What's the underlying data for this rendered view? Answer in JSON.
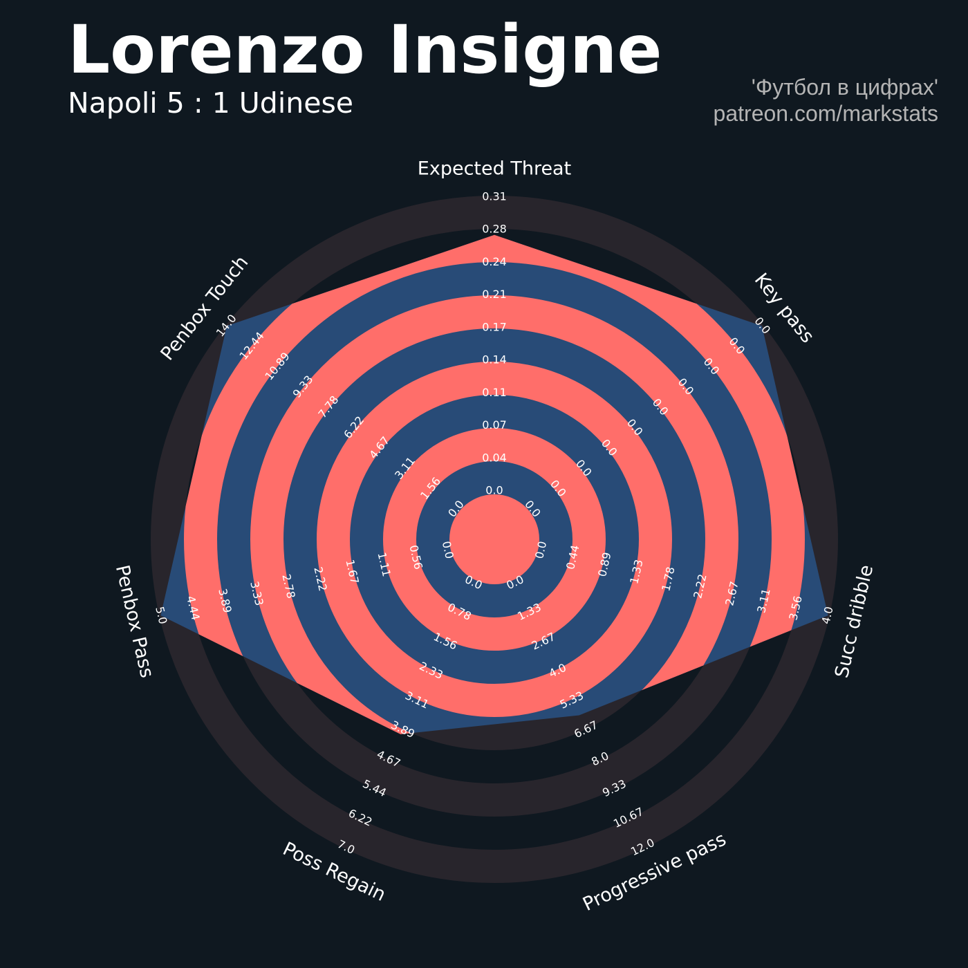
{
  "chart_data": {
    "type": "radar",
    "title": "Lorenzo Insigne",
    "subtitle": "Napoli 5 : 1 Udinese",
    "credits": [
      "'Футбол в цифрах'",
      "patreon.com/markstats"
    ],
    "categories": [
      "Expected Threat",
      "Key pass",
      "Succ dribble",
      "Progressive pass",
      "Poss Regain",
      "Penbox Pass",
      "Penbox Touch"
    ],
    "values": [
      0.27,
      0,
      4,
      6,
      4,
      5,
      14
    ],
    "ranges": [
      [
        0,
        0.31
      ],
      [
        0,
        0
      ],
      [
        0,
        4
      ],
      [
        0,
        12
      ],
      [
        0,
        7
      ],
      [
        0,
        5
      ],
      [
        0,
        14
      ]
    ],
    "ticks": [
      [
        {
          "value": 0,
          "label": "0.0"
        },
        0.04,
        0.07,
        0.11,
        0.14,
        0.17,
        0.21,
        0.24,
        0.28,
        0.31
      ],
      [
        {
          "value": 0,
          "label": "0.0"
        },
        {
          "value": 0,
          "label": "0.0"
        },
        {
          "value": 0,
          "label": "0.0"
        },
        {
          "value": 0,
          "label": "0.0"
        },
        {
          "value": 0,
          "label": "0.0"
        },
        {
          "value": 0,
          "label": "0.0"
        },
        {
          "value": 0,
          "label": "0.0"
        },
        {
          "value": 0,
          "label": "0.0"
        },
        {
          "value": 0,
          "label": "0.0"
        },
        {
          "value": 0,
          "label": "0.0"
        }
      ],
      [
        {
          "value": 0,
          "label": "0.0"
        },
        0.44,
        0.89,
        1.33,
        1.78,
        2.22,
        2.67,
        3.11,
        3.56,
        {
          "value": 4,
          "label": "4.0"
        }
      ],
      [
        {
          "value": 0,
          "label": "0.0"
        },
        1.33,
        2.67,
        {
          "value": 4,
          "label": "4.0"
        },
        5.33,
        6.67,
        {
          "value": 8,
          "label": "8.0"
        },
        9.33,
        10.67,
        {
          "value": 12,
          "label": "12.0"
        }
      ],
      [
        {
          "value": 0,
          "label": "0.0"
        },
        0.78,
        1.56,
        2.33,
        3.11,
        3.89,
        4.67,
        5.44,
        6.22,
        {
          "value": 7,
          "label": "7.0"
        }
      ],
      [
        {
          "value": 0,
          "label": "0.0"
        },
        0.56,
        1.11,
        1.67,
        2.22,
        2.78,
        3.33,
        3.89,
        4.44,
        {
          "value": 5,
          "label": "5.0"
        }
      ],
      [
        {
          "value": 0,
          "label": "0.0"
        },
        1.56,
        3.11,
        4.67,
        6.22,
        7.78,
        9.33,
        10.89,
        12.44,
        {
          "value": 14,
          "label": "14.0"
        }
      ]
    ],
    "colors": {
      "background": "#0f1820",
      "rings": "#28252c",
      "radar": "#284b77",
      "radar_rings": "#ff6e6a"
    }
  }
}
